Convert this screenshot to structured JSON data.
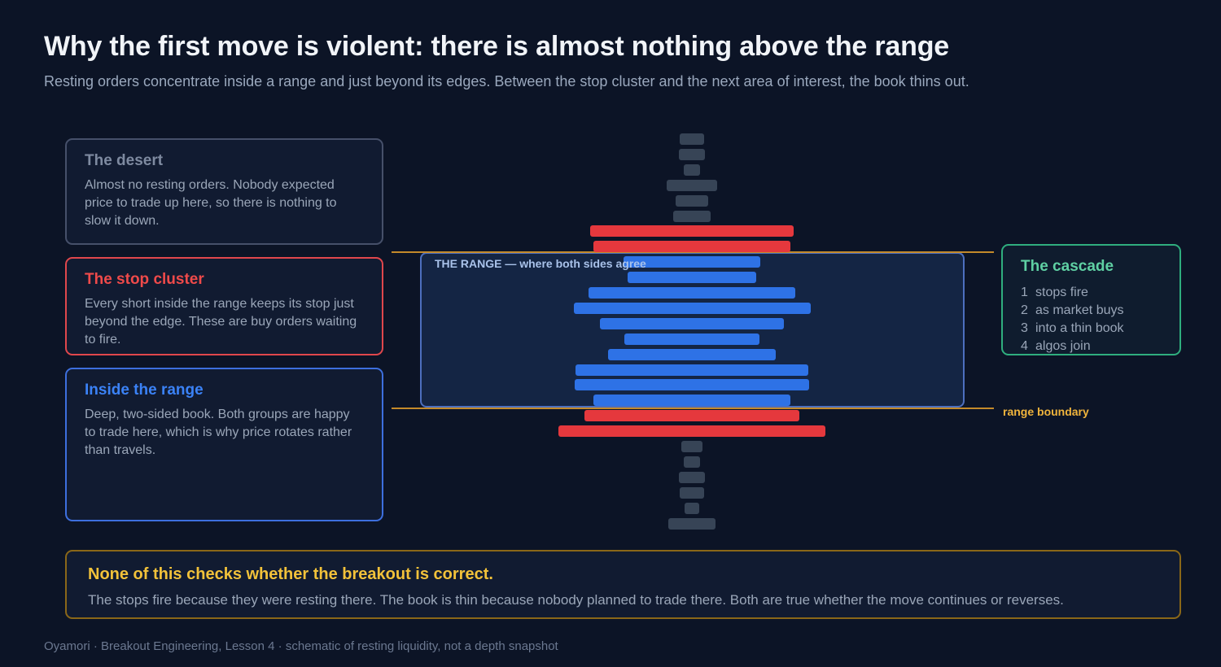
{
  "header": {
    "title": "Why the first move is violent: there is almost nothing above the range",
    "subtitle": "Resting orders concentrate inside a range and just beyond its edges. Between the stop cluster and the next area of interest, the book thins out."
  },
  "cards": {
    "desert": {
      "title": "The desert",
      "body": "Almost no resting orders. Nobody expected price to trade up here, so there is nothing to slow it down."
    },
    "stop_cluster": {
      "title": "The stop cluster",
      "body": "Every short inside the range keeps its stop just beyond the edge. These are buy orders waiting to fire."
    },
    "inside_range": {
      "title": "Inside the range",
      "body": "Deep, two-sided book. Both groups are happy to trade here, which is why price rotates rather than travels."
    },
    "cascade": {
      "title": "The cascade",
      "steps": [
        {
          "num": "1",
          "text": "stops fire"
        },
        {
          "num": "2",
          "text": "as market buys"
        },
        {
          "num": "3",
          "text": "into a thin book"
        },
        {
          "num": "4",
          "text": "algos join"
        }
      ]
    }
  },
  "diagram": {
    "range_label": "THE RANGE — where both sides agree",
    "boundary_label": "range boundary",
    "colors": {
      "desert": "#374456",
      "stop": "#e5383d",
      "range": "#2e72e6",
      "boundary": "#c48a2a"
    },
    "levels": [
      {
        "zone": "desert",
        "depth": 0.1
      },
      {
        "zone": "desert",
        "depth": 0.11
      },
      {
        "zone": "desert",
        "depth": 0.07
      },
      {
        "zone": "desert",
        "depth": 0.21
      },
      {
        "zone": "desert",
        "depth": 0.14
      },
      {
        "zone": "desert",
        "depth": 0.16
      },
      {
        "zone": "stop",
        "depth": 0.86
      },
      {
        "zone": "stop",
        "depth": 0.83
      },
      {
        "zone": "range",
        "depth": 0.58
      },
      {
        "zone": "range",
        "depth": 0.54
      },
      {
        "zone": "range",
        "depth": 0.87
      },
      {
        "zone": "range",
        "depth": 1.0
      },
      {
        "zone": "range",
        "depth": 0.78
      },
      {
        "zone": "range",
        "depth": 0.57
      },
      {
        "zone": "range",
        "depth": 0.71
      },
      {
        "zone": "range",
        "depth": 0.98
      },
      {
        "zone": "range",
        "depth": 0.99
      },
      {
        "zone": "range",
        "depth": 0.83
      },
      {
        "zone": "stop",
        "depth": 0.91
      },
      {
        "zone": "stop",
        "depth": 1.13
      },
      {
        "zone": "desert",
        "depth": 0.09
      },
      {
        "zone": "desert",
        "depth": 0.07
      },
      {
        "zone": "desert",
        "depth": 0.11
      },
      {
        "zone": "desert",
        "depth": 0.1
      },
      {
        "zone": "desert",
        "depth": 0.06
      },
      {
        "zone": "desert",
        "depth": 0.2
      }
    ]
  },
  "callout": {
    "title": "None of this checks whether the breakout is correct.",
    "body": "The stops fire because they were resting there. The book is thin because nobody planned to trade there. Both are true whether the move continues or reverses."
  },
  "footer": "Oyamori · Breakout Engineering, Lesson 4 · schematic of resting liquidity, not a depth snapshot"
}
